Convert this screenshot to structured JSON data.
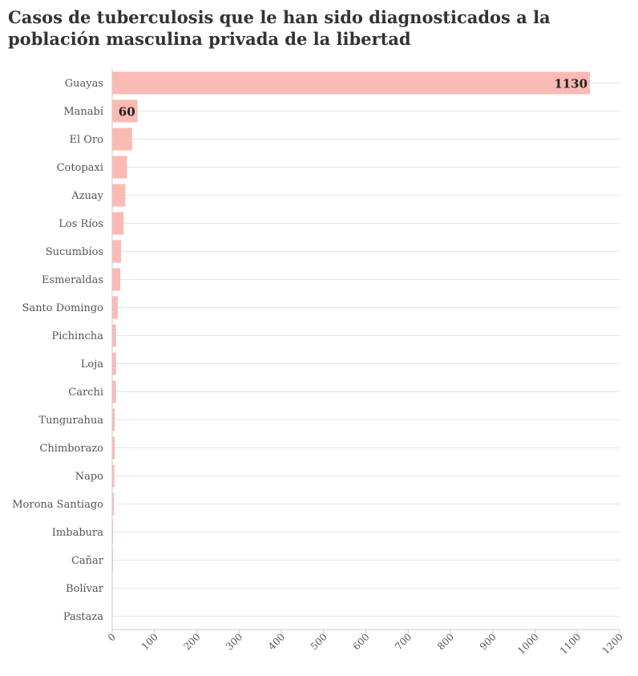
{
  "chart_data": {
    "type": "bar",
    "orientation": "horizontal",
    "title": "Casos de tuberculosis que le han sido diagnosticados a la población masculina privada de la libertad",
    "categories": [
      "Guayas",
      "Manabí",
      "El Oro",
      "Cotopaxi",
      "Azuay",
      "Los Ríos",
      "Sucumbíos",
      "Esmeraldas",
      "Santo Domingo",
      "Pichincha",
      "Loja",
      "Carchi",
      "Tungurahua",
      "Chimborazo",
      "Napo",
      "Morona Santiago",
      "Imbabura",
      "Cañar",
      "Bolívar",
      "Pastaza"
    ],
    "values": [
      1130,
      60,
      47,
      35,
      31,
      27,
      21,
      19,
      13,
      9,
      9,
      9,
      6,
      6,
      5,
      4,
      2,
      2,
      1,
      0
    ],
    "data_labels": [
      {
        "category": "Guayas",
        "text": "1130"
      },
      {
        "category": "Manabí",
        "text": "60"
      }
    ],
    "xlim": [
      0,
      1200
    ],
    "x_ticks": [
      0,
      100,
      200,
      300,
      400,
      500,
      600,
      700,
      800,
      900,
      1000,
      1100,
      1200
    ],
    "xlabel": "",
    "ylabel": "",
    "grid": true,
    "bar_color": "#fbbab4"
  }
}
